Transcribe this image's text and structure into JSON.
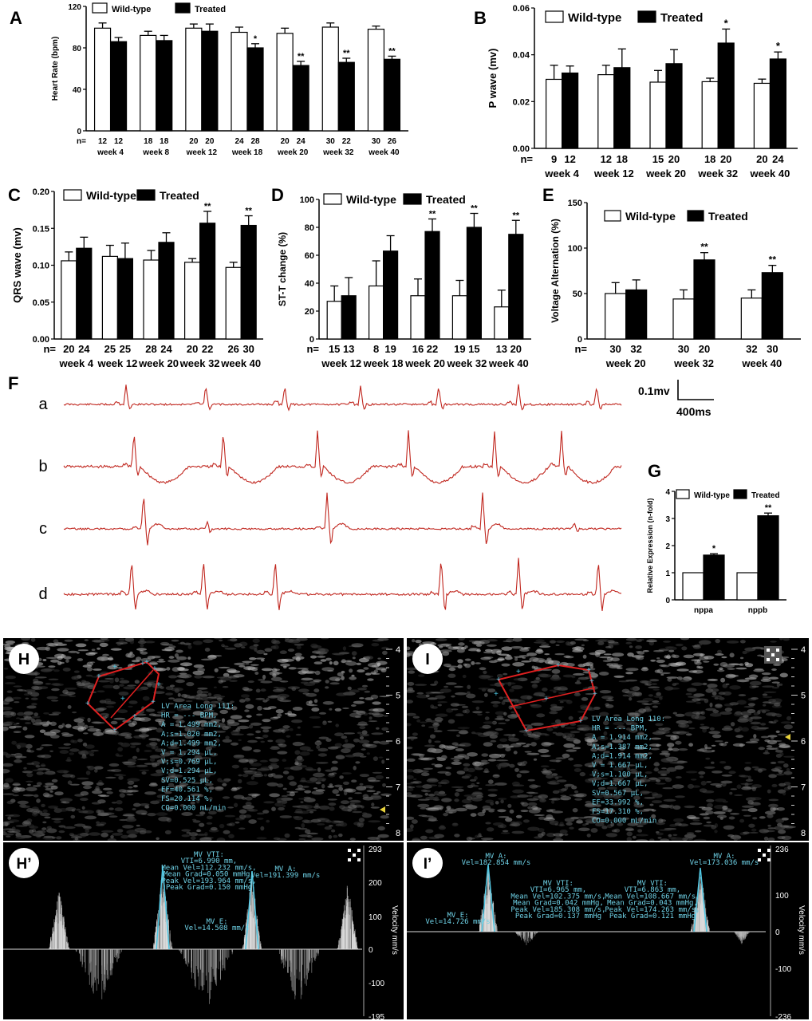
{
  "colors": {
    "wildtype_fill": "#ffffff",
    "treated_fill": "#000000",
    "ecg_trace": "#c0261e",
    "us_cyan": "#4fc7e3",
    "us_red": "#e02020"
  },
  "legend": {
    "wt": "Wild-type",
    "tr": "Treated"
  },
  "chart_data": [
    {
      "id": "A",
      "type": "bar",
      "ylabel": "Heart Rate (bpm)",
      "ylim": [
        0,
        120
      ],
      "yticks": [
        "0",
        "40",
        "80",
        "120"
      ],
      "categories": [
        "week 4",
        "week 8",
        "week 12",
        "week 18",
        "week 20",
        "week 32",
        "week 40"
      ],
      "n_prefix": "n=",
      "n_wt": [
        "12",
        "18",
        "20",
        "24",
        "20",
        "30",
        "30"
      ],
      "n_tr": [
        "12",
        "18",
        "20",
        "28",
        "24",
        "22",
        "26"
      ],
      "series": [
        {
          "name": "Wild-type",
          "values": [
            99,
            92,
            99,
            95,
            94,
            100,
            98
          ],
          "err": [
            5,
            4,
            4,
            5,
            5,
            4,
            3
          ]
        },
        {
          "name": "Treated",
          "values": [
            86,
            87,
            96,
            80,
            63,
            66,
            69
          ],
          "err": [
            4,
            5,
            7,
            4,
            4,
            4,
            3
          ]
        }
      ],
      "sig_tr": [
        "",
        "",
        "",
        "*",
        "**",
        "**",
        "**"
      ]
    },
    {
      "id": "B",
      "type": "bar",
      "ylabel": "P wave (mv)",
      "ylim": [
        0,
        0.06
      ],
      "yticks": [
        "0.00",
        "0.02",
        "0.04",
        "0.06"
      ],
      "categories": [
        "week 4",
        "week 12",
        "week 20",
        "week 32",
        "week 40"
      ],
      "n_prefix": "n=",
      "n_wt": [
        "9",
        "12",
        "15",
        "18",
        "20"
      ],
      "n_tr": [
        "12",
        "18",
        "20",
        "20",
        "24"
      ],
      "series": [
        {
          "name": "Wild-type",
          "values": [
            0.0295,
            0.0315,
            0.0283,
            0.0285,
            0.0278
          ],
          "err": [
            0.006,
            0.004,
            0.005,
            0.0015,
            0.0018
          ]
        },
        {
          "name": "Treated",
          "values": [
            0.0322,
            0.0345,
            0.0362,
            0.045,
            0.0382
          ],
          "err": [
            0.003,
            0.008,
            0.006,
            0.006,
            0.003
          ]
        }
      ],
      "sig_tr": [
        "",
        "",
        "",
        "*",
        "*"
      ]
    },
    {
      "id": "C",
      "type": "bar",
      "ylabel": "QRS wave (mv)",
      "ylim": [
        0,
        0.2
      ],
      "yticks": [
        "0.00",
        "0.05",
        "0.10",
        "0.15",
        "0.20"
      ],
      "categories": [
        "week 4",
        "week 12",
        "week 20",
        "week 32",
        "week 40"
      ],
      "n_prefix": "n=",
      "n_wt": [
        "20",
        "25",
        "28",
        "20",
        "26"
      ],
      "n_tr": [
        "24",
        "25",
        "24",
        "22",
        "30"
      ],
      "series": [
        {
          "name": "Wild-type",
          "values": [
            0.106,
            0.112,
            0.107,
            0.104,
            0.097
          ],
          "err": [
            0.012,
            0.015,
            0.013,
            0.005,
            0.007
          ]
        },
        {
          "name": "Treated",
          "values": [
            0.123,
            0.109,
            0.131,
            0.157,
            0.154
          ],
          "err": [
            0.015,
            0.021,
            0.013,
            0.016,
            0.013
          ]
        }
      ],
      "sig_tr": [
        "",
        "",
        "",
        "**",
        "**"
      ]
    },
    {
      "id": "D",
      "type": "bar",
      "ylabel": "ST-T change (%)",
      "ylim": [
        0,
        100
      ],
      "yticks": [
        "0",
        "20",
        "40",
        "60",
        "80",
        "100"
      ],
      "categories": [
        "week 12",
        "week 18",
        "week 20",
        "week 32",
        "week 40"
      ],
      "n_prefix": "n=",
      "n_wt": [
        "15",
        "8",
        "16",
        "19",
        "13"
      ],
      "n_tr": [
        "13",
        "19",
        "22",
        "15",
        "20"
      ],
      "series": [
        {
          "name": "Wild-type",
          "values": [
            27,
            38,
            31,
            31,
            23
          ],
          "err": [
            11,
            18,
            12,
            11,
            12
          ]
        },
        {
          "name": "Treated",
          "values": [
            31,
            63,
            77,
            80,
            75
          ],
          "err": [
            13,
            11,
            9,
            10,
            10
          ]
        }
      ],
      "sig_tr": [
        "",
        "",
        "**",
        "**",
        "**"
      ]
    },
    {
      "id": "E",
      "type": "bar",
      "ylabel": "Voltage Alternation (%)",
      "ylim": [
        0,
        150
      ],
      "yticks": [
        "0",
        "50",
        "100",
        "150"
      ],
      "categories": [
        "week 20",
        "week 32",
        "week 40"
      ],
      "n_prefix": "n=",
      "n_wt": [
        "30",
        "30",
        "32"
      ],
      "n_tr": [
        "32",
        "20",
        "30"
      ],
      "series": [
        {
          "name": "Wild-type",
          "values": [
            50,
            44,
            45
          ],
          "err": [
            12,
            10,
            9
          ]
        },
        {
          "name": "Treated",
          "values": [
            54,
            87,
            73
          ],
          "err": [
            11,
            8,
            8
          ]
        }
      ],
      "sig_tr": [
        "",
        "**",
        "**"
      ]
    },
    {
      "id": "G",
      "type": "bar",
      "ylabel": "Relative Expression (n-fold)",
      "ylim": [
        0,
        4
      ],
      "yticks": [
        "0",
        "1",
        "2",
        "3",
        "4"
      ],
      "categories": [
        "nppa",
        "nppb"
      ],
      "series": [
        {
          "name": "Wild-type",
          "values": [
            1,
            1
          ],
          "err": [
            0,
            0
          ]
        },
        {
          "name": "Treated",
          "values": [
            1.65,
            3.1
          ],
          "err": [
            0.05,
            0.1
          ]
        }
      ],
      "sig_tr": [
        "*",
        "**"
      ]
    }
  ],
  "ecg": {
    "letters": [
      "a",
      "b",
      "c",
      "d"
    ],
    "scale_v": "0.1mv",
    "scale_t": "400ms"
  },
  "panels": {
    "A": "A",
    "B": "B",
    "C": "C",
    "D": "D",
    "E": "E",
    "F": "F",
    "G": "G",
    "H": "H",
    "I": "I",
    "Hp": "H’",
    "Ip": "I’"
  },
  "echo_H": {
    "text": [
      "LV Area Long 111:",
      "HR = --- BPM,",
      "A = 1.499 mm2,",
      "A;s=1.020 mm2,",
      "A;d=1.499 mm2,",
      "V = 1.294 μL,",
      "V;s=0.769 μL,",
      "V;d=1.294 μL,",
      "SV=0.525 μL,",
      "EF=40.561 %,",
      "FS=20.114 %,",
      "CO=0.000 mL/min"
    ],
    "depth": [
      "4",
      "5",
      "6",
      "7",
      "8"
    ]
  },
  "echo_I": {
    "text": [
      "LV Area Long 110:",
      "HR = --- BPM,",
      "A = 1.914 mm2,",
      "A;s=1.387 mm2,",
      "A;d=1.914 mm2,",
      "V = 1.667 μL,",
      "V;s=1.100 μL,",
      "V;d=1.667 μL,",
      "SV=0.567 μL,",
      "EF=33.992 %,",
      "FS=17.310 %,",
      "CO=0.000 mL/min"
    ],
    "depth": [
      "4",
      "5",
      "6",
      "7",
      "8"
    ]
  },
  "doppler_Hp": {
    "axis": [
      "293",
      "200",
      "100",
      "0",
      "-100",
      "-195"
    ],
    "axis_title": "Velocity mm/s",
    "mv_vti": [
      "MV VTI:",
      "VTI=6.990 mm,",
      "Mean Vel=112.232 mm/s,",
      "Mean Grad=0.050 mmHg,",
      "Peak Vel=193.964 mm/s,",
      "Peak Grad=0.150 mmHg"
    ],
    "mv_a": [
      "MV A:",
      "Vel=191.399 mm/s"
    ],
    "mv_e": [
      "MV E:",
      "Vel=14.508 mm/s"
    ]
  },
  "doppler_Ip": {
    "axis": [
      "236",
      "100",
      "0",
      "-100",
      "-236"
    ],
    "axis_title": "Velocity mm/s",
    "mv_a1": [
      "MV A:",
      "Vel=182.854 mm/s"
    ],
    "mv_e": [
      "MV E:",
      "Vel=14.726 mm/s"
    ],
    "mv_vti1": [
      "MV VTI:",
      "VTI=6.965 mm,",
      "Mean Vel=102.375 mm/s,",
      "Mean Grad=0.042 mmHg,",
      "Peak Vel=185.308 mm/s,",
      "Peak Grad=0.137 mmHg"
    ],
    "mv_a2": [
      "MV A:",
      "Vel=173.036 mm/s"
    ],
    "mv_vti2": [
      "MV VTI:",
      "VTI=6.863 mm,",
      "Mean Vel=108.667 mm/s,",
      "Mean Grad=0.043 mmHg,",
      "Peak Vel=174.263 mm/s,",
      "Peak Grad=0.121 mmHg"
    ]
  }
}
